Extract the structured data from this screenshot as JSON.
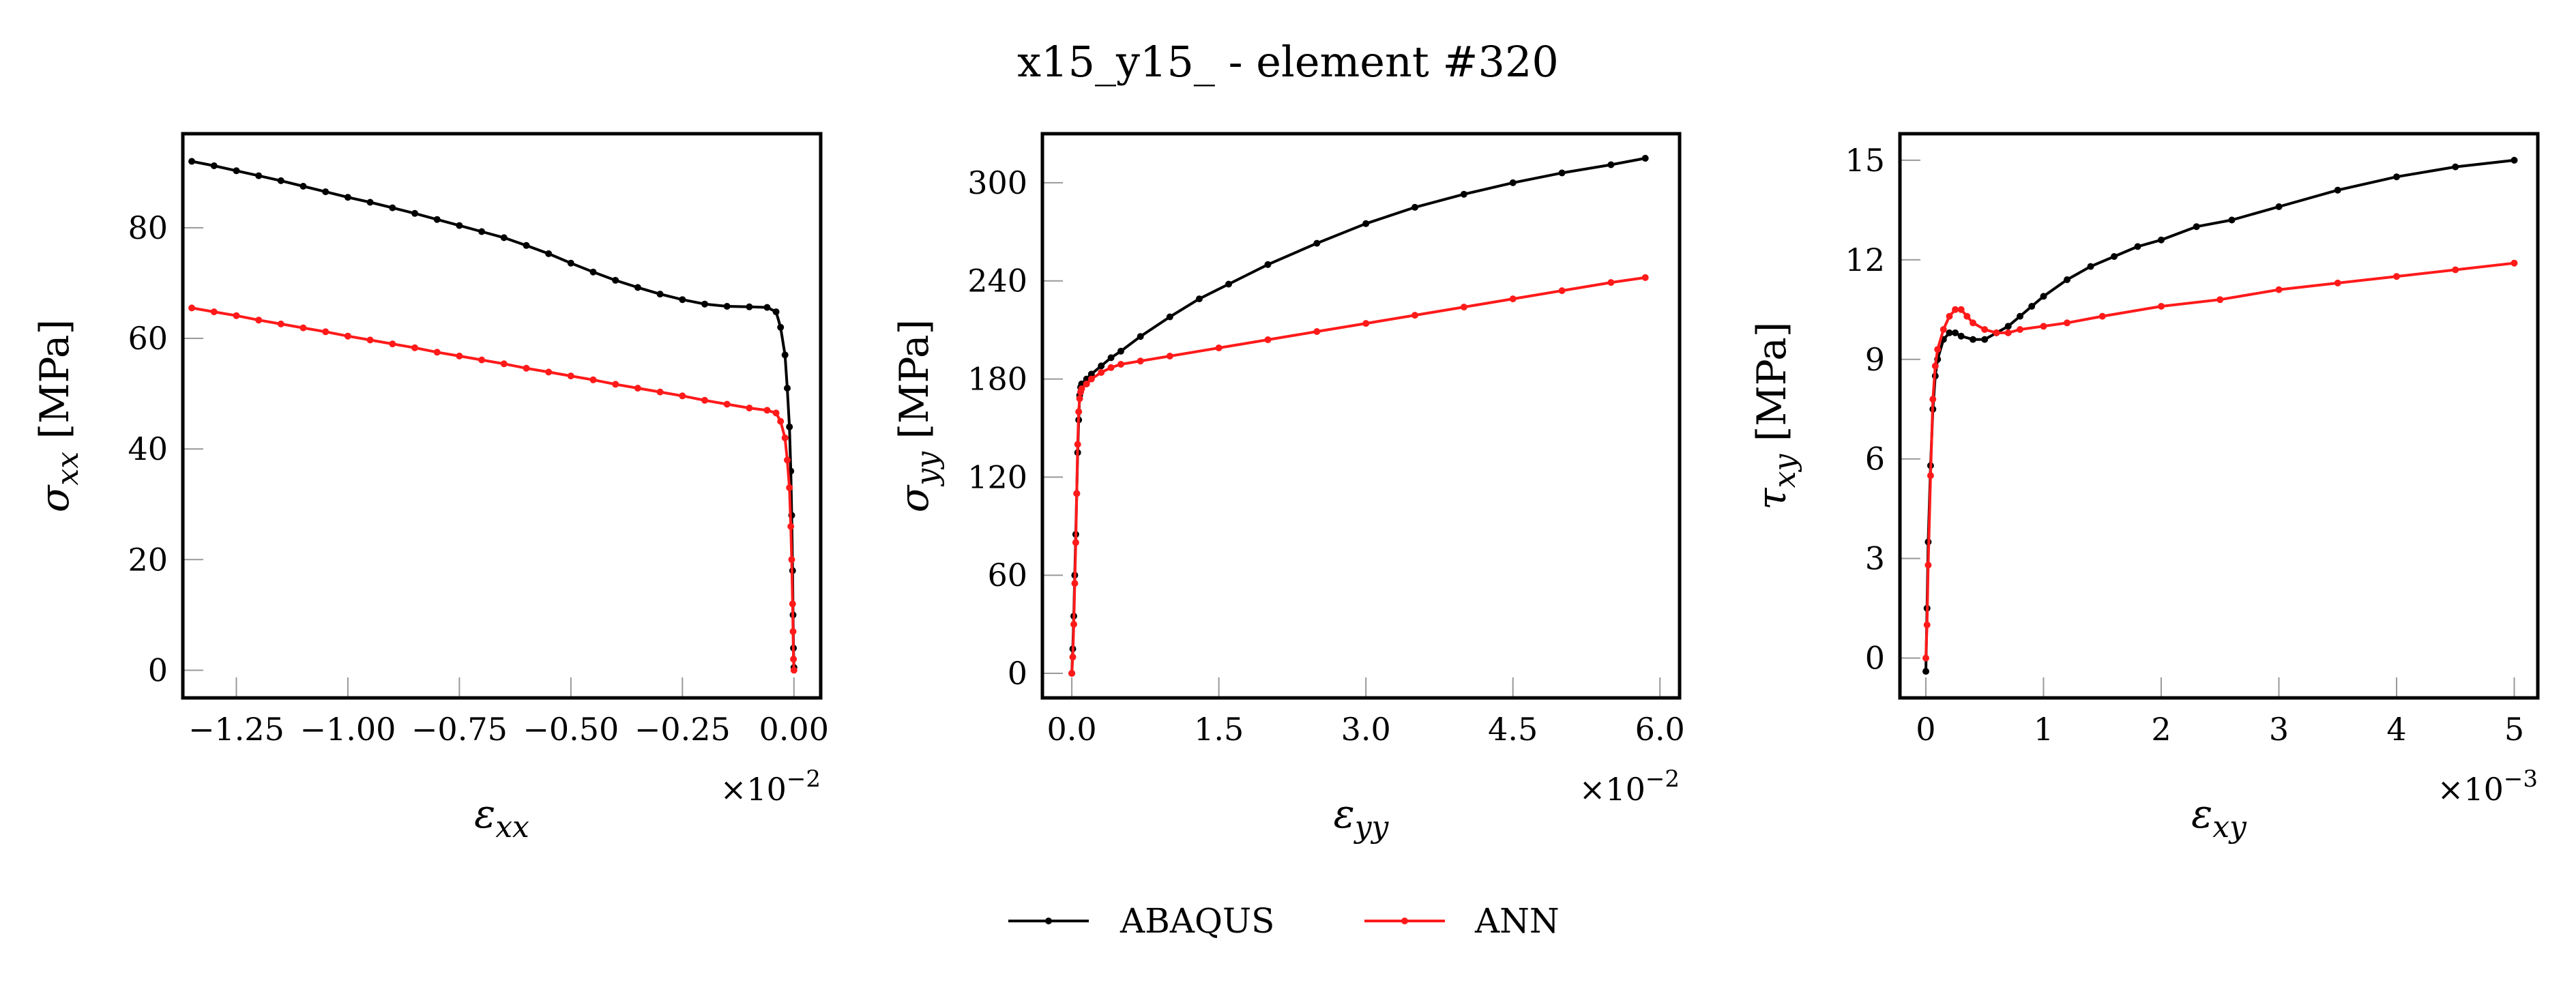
{
  "figure": {
    "title": "x15_y15_ - element #320"
  },
  "legend": {
    "placement": "bottom-center",
    "entries": [
      {
        "label": "ABAQUS",
        "color": "#000000"
      },
      {
        "label": "ANN",
        "color": "#ff1a1a"
      }
    ]
  },
  "chart_data": [
    {
      "type": "line",
      "xlabel_sym": "ε",
      "xlabel_sub": "xx",
      "ylabel_sym": "σ",
      "ylabel_sub": "xx",
      "ylabel_unit": " [MPa]",
      "x_multiplier": "×10",
      "x_exponent": "−2",
      "xlim": [
        -1.37,
        0.06
      ],
      "ylim": [
        -5,
        97
      ],
      "xticks": [
        -1.25,
        -1.0,
        -0.75,
        -0.5,
        -0.25,
        0.0
      ],
      "xticklabels": [
        "−1.25",
        "−1.00",
        "−0.75",
        "−0.50",
        "−0.25",
        "0.00"
      ],
      "yticks": [
        0,
        20,
        40,
        60,
        80
      ],
      "yticklabels": [
        "0",
        "20",
        "40",
        "60",
        "80"
      ],
      "series": [
        {
          "name": "ABAQUS",
          "color": "#000000",
          "x": [
            -1.35,
            -1.3,
            -1.25,
            -1.2,
            -1.15,
            -1.1,
            -1.05,
            -1.0,
            -0.95,
            -0.9,
            -0.85,
            -0.8,
            -0.75,
            -0.7,
            -0.65,
            -0.6,
            -0.55,
            -0.5,
            -0.45,
            -0.4,
            -0.35,
            -0.3,
            -0.25,
            -0.2,
            -0.15,
            -0.1,
            -0.06,
            -0.04,
            -0.03,
            -0.02,
            -0.015,
            -0.01,
            -0.007,
            -0.005,
            -0.003,
            -0.002,
            -0.001,
            0.0
          ],
          "y": [
            92,
            91.2,
            90.3,
            89.4,
            88.5,
            87.5,
            86.5,
            85.5,
            84.6,
            83.6,
            82.6,
            81.5,
            80.4,
            79.3,
            78.2,
            76.8,
            75.3,
            73.6,
            72.0,
            70.5,
            69.2,
            68.0,
            67.0,
            66.2,
            65.8,
            65.7,
            65.6,
            64.8,
            62.0,
            57.0,
            51.0,
            44.0,
            36.0,
            28.0,
            18.0,
            10.0,
            4.0,
            0.5
          ]
        },
        {
          "name": "ANN",
          "color": "#ff1a1a",
          "x": [
            -1.35,
            -1.3,
            -1.25,
            -1.2,
            -1.15,
            -1.1,
            -1.05,
            -1.0,
            -0.95,
            -0.9,
            -0.85,
            -0.8,
            -0.75,
            -0.7,
            -0.65,
            -0.6,
            -0.55,
            -0.5,
            -0.45,
            -0.4,
            -0.35,
            -0.3,
            -0.25,
            -0.2,
            -0.15,
            -0.1,
            -0.06,
            -0.04,
            -0.03,
            -0.02,
            -0.015,
            -0.01,
            -0.007,
            -0.005,
            -0.003,
            -0.002,
            -0.001,
            0.0
          ],
          "y": [
            65.5,
            64.8,
            64.1,
            63.3,
            62.6,
            61.9,
            61.2,
            60.4,
            59.7,
            59.0,
            58.3,
            57.5,
            56.8,
            56.1,
            55.4,
            54.6,
            53.9,
            53.2,
            52.5,
            51.7,
            51.0,
            50.3,
            49.6,
            48.8,
            48.1,
            47.4,
            47.0,
            46.5,
            45.0,
            42.0,
            38.0,
            33.0,
            26.0,
            20.0,
            12.0,
            7.0,
            2.0,
            0.0
          ]
        }
      ]
    },
    {
      "type": "line",
      "xlabel_sym": "ε",
      "xlabel_sub": "yy",
      "ylabel_sym": "σ",
      "ylabel_sub": "yy",
      "ylabel_unit": " [MPa]",
      "x_multiplier": "×10",
      "x_exponent": "−2",
      "xlim": [
        -0.3,
        6.2
      ],
      "ylim": [
        -15,
        330
      ],
      "xticks": [
        0.0,
        1.5,
        3.0,
        4.5,
        6.0
      ],
      "xticklabels": [
        "0.0",
        "1.5",
        "3.0",
        "4.5",
        "6.0"
      ],
      "yticks": [
        0,
        60,
        120,
        180,
        240,
        300
      ],
      "yticklabels": [
        "0",
        "60",
        "120",
        "180",
        "240",
        "300"
      ],
      "series": [
        {
          "name": "ABAQUS",
          "color": "#000000",
          "x": [
            0.0,
            0.01,
            0.02,
            0.03,
            0.04,
            0.05,
            0.06,
            0.07,
            0.08,
            0.09,
            0.1,
            0.15,
            0.2,
            0.3,
            0.4,
            0.5,
            0.7,
            1.0,
            1.3,
            1.6,
            2.0,
            2.5,
            3.0,
            3.5,
            4.0,
            4.5,
            5.0,
            5.5,
            5.85
          ],
          "y": [
            0,
            15,
            35,
            60,
            85,
            110,
            135,
            155,
            170,
            175,
            177,
            180,
            183,
            188,
            193,
            197,
            206,
            218,
            229,
            238,
            250,
            263,
            275,
            285,
            293,
            300,
            306,
            311,
            315
          ]
        },
        {
          "name": "ANN",
          "color": "#ff1a1a",
          "x": [
            0.0,
            0.01,
            0.02,
            0.03,
            0.04,
            0.05,
            0.06,
            0.07,
            0.08,
            0.09,
            0.1,
            0.15,
            0.2,
            0.3,
            0.4,
            0.5,
            0.7,
            1.0,
            1.5,
            2.0,
            2.5,
            3.0,
            3.5,
            4.0,
            4.5,
            5.0,
            5.5,
            5.85
          ],
          "y": [
            0,
            10,
            30,
            55,
            80,
            110,
            140,
            160,
            168,
            172,
            174,
            177,
            180,
            184,
            187,
            189,
            191,
            194,
            199,
            204,
            209,
            214,
            219,
            224,
            229,
            234,
            239,
            242
          ]
        }
      ]
    },
    {
      "type": "line",
      "xlabel_sym": "ε",
      "xlabel_sub": "xy",
      "ylabel_sym": "τ",
      "ylabel_sub": "xy",
      "ylabel_unit": " [MPa]",
      "x_multiplier": "×10",
      "x_exponent": "−3",
      "xlim": [
        -0.22,
        5.2
      ],
      "ylim": [
        -1.2,
        15.8
      ],
      "xticks": [
        0,
        1,
        2,
        3,
        4,
        5
      ],
      "xticklabels": [
        "0",
        "1",
        "2",
        "3",
        "4",
        "5"
      ],
      "yticks": [
        0,
        3,
        6,
        9,
        12,
        15
      ],
      "yticklabels": [
        "0",
        "3",
        "6",
        "9",
        "12",
        "15"
      ],
      "series": [
        {
          "name": "ABAQUS",
          "color": "#000000",
          "x": [
            0.0,
            0.01,
            0.02,
            0.04,
            0.06,
            0.08,
            0.1,
            0.15,
            0.2,
            0.25,
            0.3,
            0.4,
            0.5,
            0.6,
            0.7,
            0.8,
            0.9,
            1.0,
            1.2,
            1.4,
            1.6,
            1.8,
            2.0,
            2.3,
            2.6,
            3.0,
            3.5,
            4.0,
            4.5,
            5.0
          ],
          "y": [
            -0.4,
            1.5,
            3.5,
            5.8,
            7.5,
            8.5,
            9.0,
            9.6,
            9.8,
            9.8,
            9.7,
            9.6,
            9.6,
            9.8,
            10.0,
            10.3,
            10.6,
            10.9,
            11.4,
            11.8,
            12.1,
            12.4,
            12.6,
            13.0,
            13.2,
            13.6,
            14.1,
            14.5,
            14.8,
            15.0
          ]
        },
        {
          "name": "ANN",
          "color": "#ff1a1a",
          "x": [
            0.0,
            0.01,
            0.02,
            0.04,
            0.06,
            0.08,
            0.1,
            0.15,
            0.2,
            0.25,
            0.3,
            0.35,
            0.4,
            0.5,
            0.6,
            0.7,
            0.8,
            1.0,
            1.2,
            1.5,
            2.0,
            2.5,
            3.0,
            3.5,
            4.0,
            4.5,
            5.0
          ],
          "y": [
            0.0,
            1.0,
            2.8,
            5.5,
            7.8,
            8.8,
            9.3,
            9.9,
            10.3,
            10.5,
            10.5,
            10.3,
            10.1,
            9.9,
            9.8,
            9.8,
            9.9,
            10.0,
            10.1,
            10.3,
            10.6,
            10.8,
            11.1,
            11.3,
            11.5,
            11.7,
            11.9
          ]
        }
      ]
    }
  ]
}
